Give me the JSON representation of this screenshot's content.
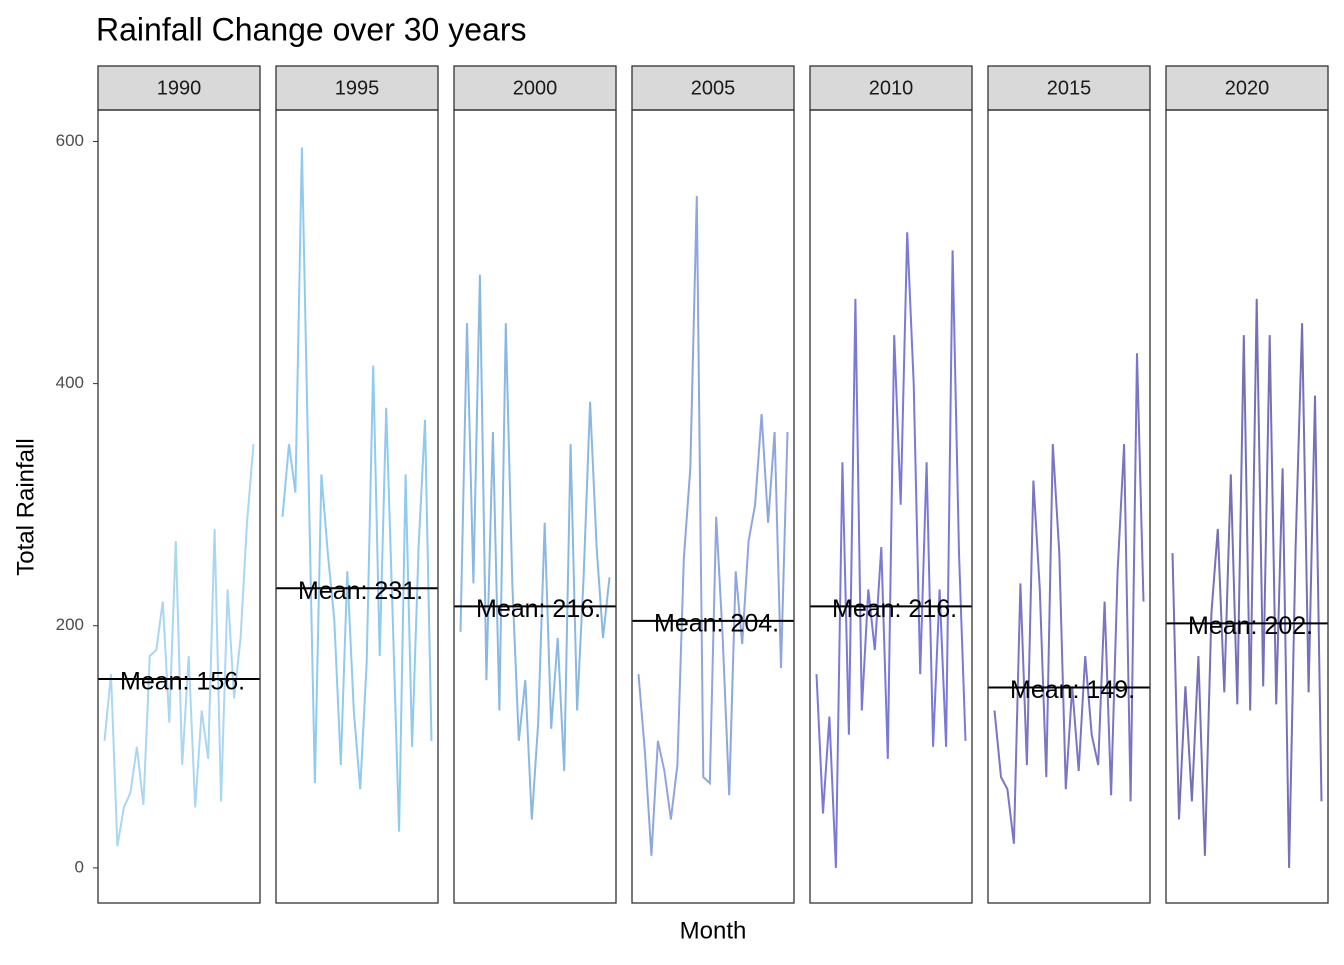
{
  "chart_data": {
    "type": "line",
    "title": "Rainfall Change over 30 years",
    "x_label": "Month",
    "y_label": "Total Rainfall",
    "ylim": [
      -29,
      626
    ],
    "yticks": [
      0,
      200,
      400,
      600
    ],
    "xlim": [
      0.5,
      13
    ],
    "series": [
      {
        "name": "1990",
        "color": "#a9d7f3",
        "mean": 156,
        "mean_label": "Mean: 156.",
        "x": [
          1,
          1.5,
          2,
          2.5,
          3,
          3.5,
          4,
          4.5,
          5,
          5.5,
          6,
          6.5,
          7,
          7.5,
          8,
          8.5,
          9,
          9.5,
          10,
          10.5,
          11,
          11.5,
          12,
          12.5
        ],
        "values": [
          105,
          160,
          18,
          50,
          62,
          100,
          52,
          175,
          180,
          220,
          120,
          270,
          85,
          175,
          50,
          130,
          90,
          280,
          55,
          230,
          140,
          190,
          285,
          350
        ]
      },
      {
        "name": "1995",
        "color": "#8fcaf0",
        "mean": 231,
        "mean_label": "Mean: 231.",
        "x": [
          1,
          1.5,
          2,
          2.5,
          3,
          3.5,
          4,
          4.5,
          5,
          5.5,
          6,
          6.5,
          7,
          7.5,
          8,
          8.5,
          9,
          9.5,
          10,
          10.5,
          11,
          11.5,
          12,
          12.5
        ],
        "values": [
          290,
          350,
          310,
          595,
          330,
          70,
          325,
          260,
          205,
          85,
          245,
          130,
          65,
          170,
          415,
          175,
          380,
          210,
          30,
          325,
          100,
          265,
          370,
          105
        ]
      },
      {
        "name": "2000",
        "color": "#8ab8e3",
        "mean": 216,
        "mean_label": "Mean: 216.",
        "x": [
          1,
          1.5,
          2,
          2.5,
          3,
          3.5,
          4,
          4.5,
          5,
          5.5,
          6,
          6.5,
          7,
          7.5,
          8,
          8.5,
          9,
          9.5,
          10,
          10.5,
          11,
          11.5,
          12,
          12.5
        ],
        "values": [
          195,
          450,
          235,
          490,
          155,
          360,
          130,
          450,
          235,
          105,
          155,
          40,
          120,
          285,
          115,
          190,
          80,
          350,
          130,
          240,
          385,
          265,
          190,
          240
        ]
      },
      {
        "name": "2005",
        "color": "#8ea6de",
        "mean": 204,
        "mean_label": "Mean: 204.",
        "x": [
          1,
          1.5,
          2,
          2.5,
          3,
          3.5,
          4,
          4.5,
          5,
          5.5,
          6,
          6.5,
          7,
          7.5,
          8,
          8.5,
          9,
          9.5,
          10,
          10.5,
          11,
          11.5,
          12,
          12.5
        ],
        "values": [
          160,
          95,
          10,
          105,
          80,
          40,
          85,
          255,
          330,
          555,
          75,
          70,
          290,
          190,
          60,
          245,
          185,
          270,
          300,
          375,
          285,
          360,
          165,
          360
        ]
      },
      {
        "name": "2010",
        "color": "#7b79d8",
        "mean": 216,
        "mean_label": "Mean: 216.",
        "x": [
          1,
          1.5,
          2,
          2.5,
          3,
          3.5,
          4,
          4.5,
          5,
          5.5,
          6,
          6.5,
          7,
          7.5,
          8,
          8.5,
          9,
          9.5,
          10,
          10.5,
          11,
          11.5,
          12,
          12.5
        ],
        "values": [
          160,
          45,
          125,
          0,
          335,
          110,
          470,
          130,
          230,
          180,
          265,
          90,
          440,
          300,
          525,
          400,
          160,
          335,
          100,
          230,
          100,
          510,
          260,
          105
        ]
      },
      {
        "name": "2015",
        "color": "#7a75c4",
        "mean": 149,
        "mean_label": "Mean: 149.",
        "x": [
          1,
          1.5,
          2,
          2.5,
          3,
          3.5,
          4,
          4.5,
          5,
          5.5,
          6,
          6.5,
          7,
          7.5,
          8,
          8.5,
          9,
          9.5,
          10,
          10.5,
          11,
          11.5,
          12,
          12.5
        ],
        "values": [
          130,
          75,
          65,
          20,
          235,
          85,
          320,
          230,
          75,
          350,
          260,
          65,
          150,
          80,
          175,
          110,
          85,
          220,
          60,
          245,
          350,
          55,
          425,
          220
        ]
      },
      {
        "name": "2020",
        "color": "#7670b8",
        "mean": 202,
        "mean_label": "Mean: 202.",
        "x": [
          1,
          1.5,
          2,
          2.5,
          3,
          3.5,
          4,
          4.5,
          5,
          5.5,
          6,
          6.5,
          7,
          7.5,
          8,
          8.5,
          9,
          9.5,
          10,
          10.5,
          11,
          11.5,
          12,
          12.5
        ],
        "values": [
          260,
          40,
          150,
          55,
          175,
          10,
          210,
          280,
          145,
          325,
          135,
          440,
          130,
          470,
          150,
          440,
          135,
          330,
          0,
          265,
          450,
          145,
          390,
          55
        ]
      }
    ]
  }
}
